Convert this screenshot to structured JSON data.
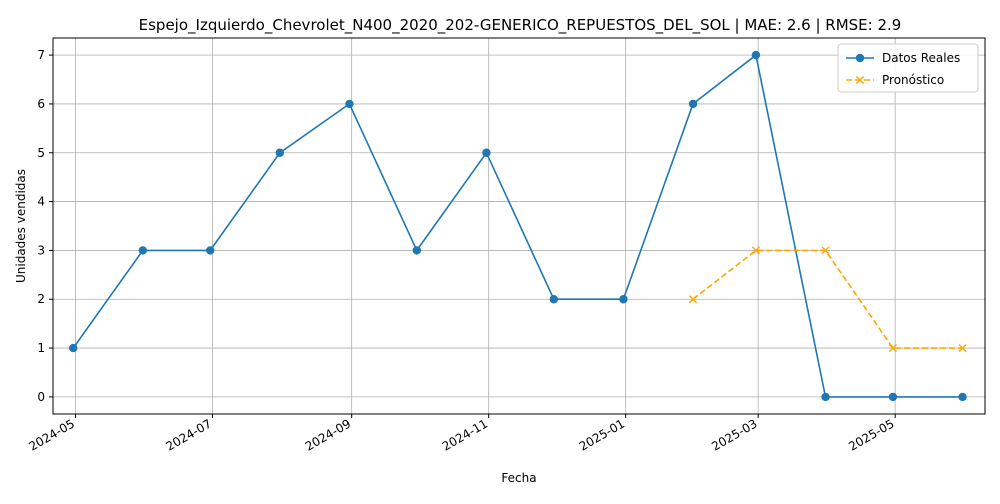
{
  "chart_data": {
    "type": "line",
    "title": "Espejo_Izquierdo_Chevrolet_N400_2020_202-GENERICO_REPUESTOS_DEL_SOL | MAE: 2.6 | RMSE: 2.9",
    "xlabel": "Fecha",
    "ylabel": "Unidades vendidas",
    "x_ticks": [
      "2024-05",
      "2024-07",
      "2024-09",
      "2024-11",
      "2025-01",
      "2025-03",
      "2025-05"
    ],
    "y_ticks": [
      "0",
      "1",
      "2",
      "3",
      "4",
      "5",
      "6",
      "7"
    ],
    "ylim": [
      -0.35,
      7.35
    ],
    "xlim": [
      "2024-04-21",
      "2025-06-10"
    ],
    "grid": true,
    "legend_position": "top-right",
    "series": [
      {
        "name": "Datos Reales",
        "color": "#1f77b4",
        "marker": "circle",
        "line_style": "solid",
        "x": [
          "2024-04-30",
          "2024-05-31",
          "2024-06-30",
          "2024-07-31",
          "2024-08-31",
          "2024-09-30",
          "2024-10-31",
          "2024-11-30",
          "2024-12-31",
          "2025-01-31",
          "2025-02-28",
          "2025-03-31",
          "2025-04-30",
          "2025-05-31"
        ],
        "values": [
          1,
          3,
          3,
          5,
          6,
          3,
          5,
          2,
          2,
          6,
          7,
          0,
          0,
          0
        ]
      },
      {
        "name": "Pronóstico",
        "color": "#ffa500",
        "marker": "x",
        "line_style": "dashed",
        "x": [
          "2025-01-31",
          "2025-02-28",
          "2025-03-31",
          "2025-04-30",
          "2025-05-31"
        ],
        "values": [
          2,
          3,
          3,
          1,
          1
        ]
      }
    ]
  }
}
